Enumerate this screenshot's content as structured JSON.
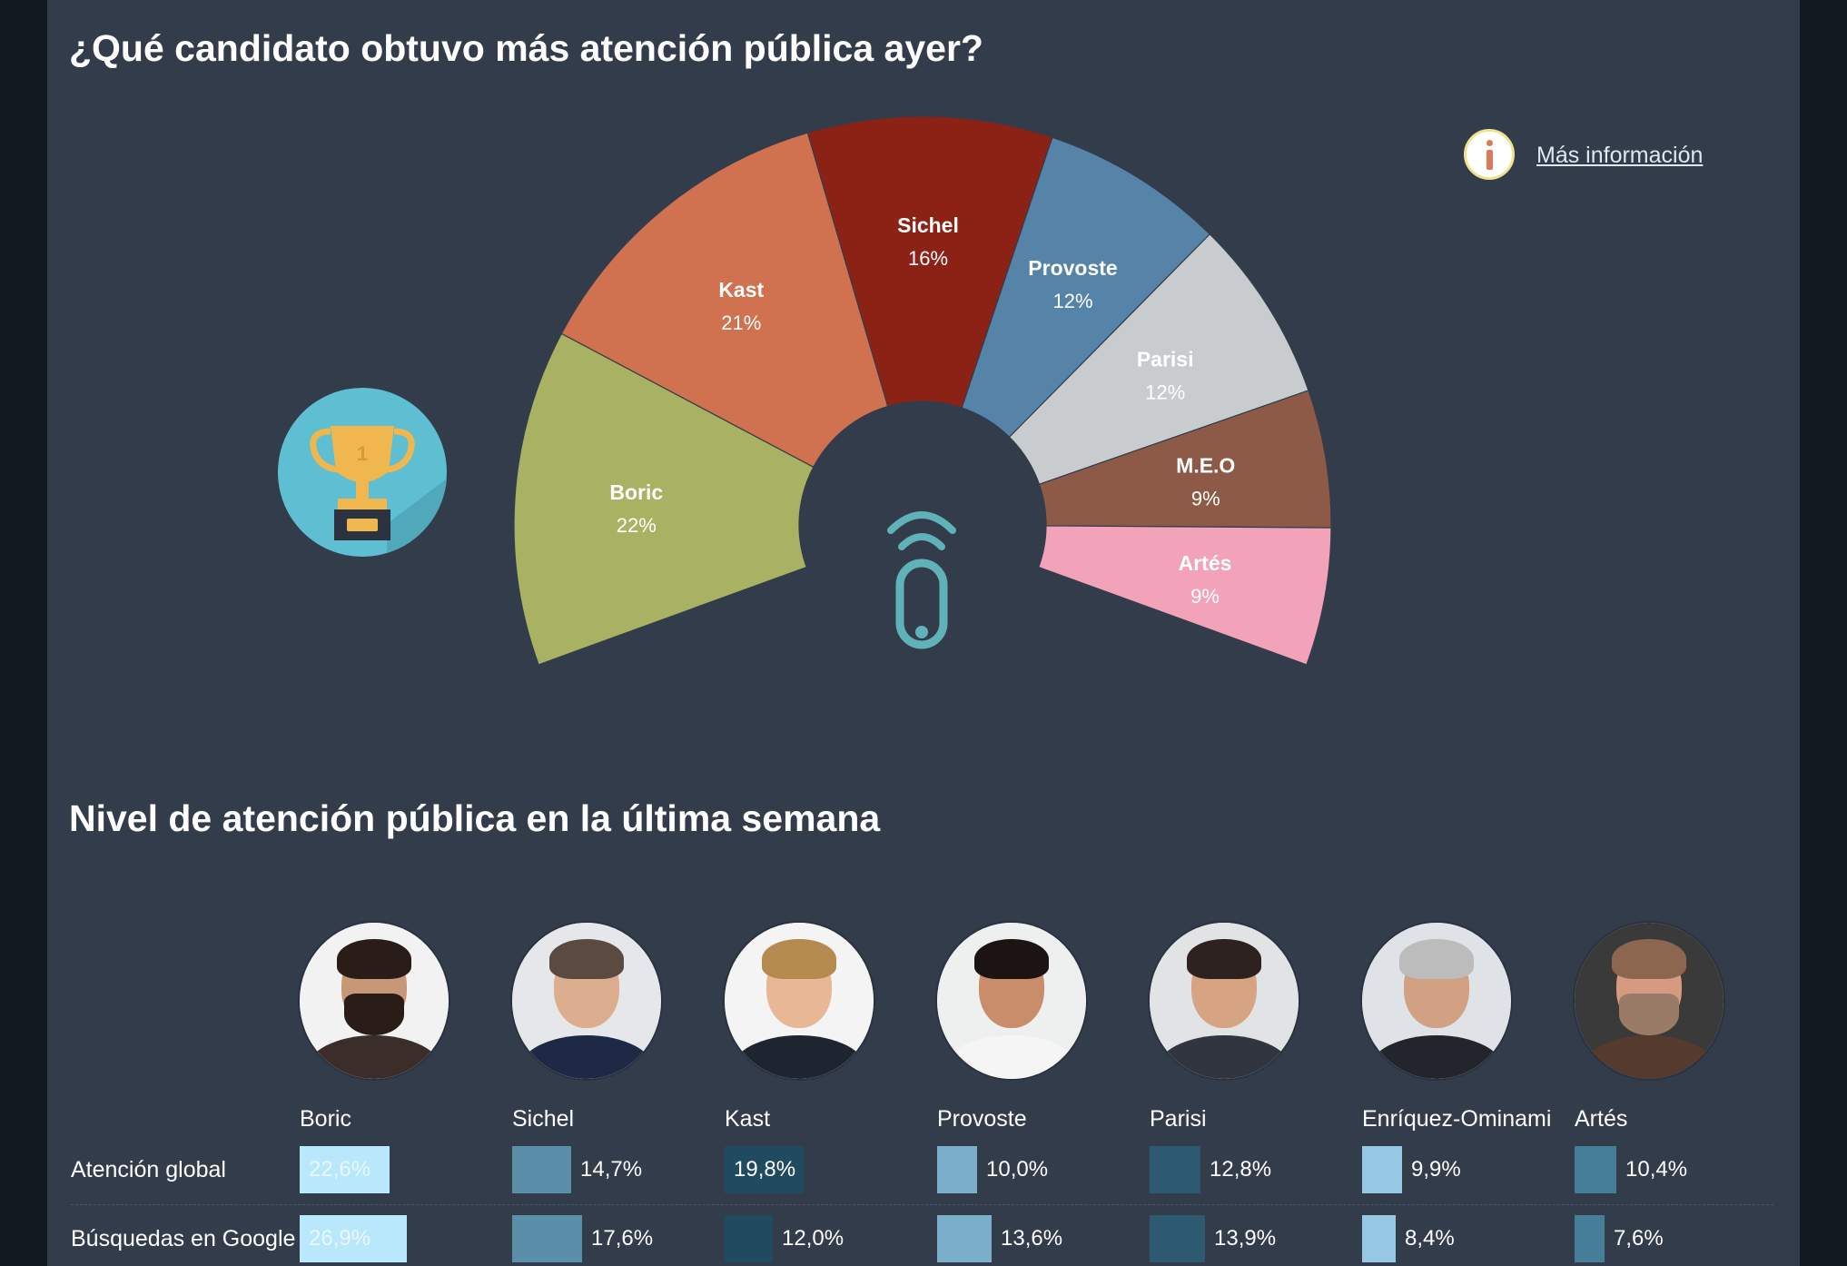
{
  "titles": {
    "main": "¿Qué candidato obtuvo más atención pública ayer?",
    "week": "Nivel de atención pública en la última semana"
  },
  "info": {
    "label": "Más información"
  },
  "icons": [
    "info-icon",
    "trophy-icon",
    "antenna-icon"
  ],
  "chart_data": [
    {
      "type": "pie",
      "variant": "half-donut",
      "title": "¿Qué candidato obtuvo más atención pública ayer?",
      "slices": [
        {
          "label": "Boric",
          "value": 22,
          "display": "22%",
          "color": "#a9b263"
        },
        {
          "label": "Kast",
          "value": 21,
          "display": "21%",
          "color": "#d07150"
        },
        {
          "label": "Sichel",
          "value": 16,
          "display": "16%",
          "color": "#8c2216"
        },
        {
          "label": "Provoste",
          "value": 12,
          "display": "12%",
          "color": "#5683a8"
        },
        {
          "label": "Parisi",
          "value": 12,
          "display": "12%",
          "color": "#c8cccf"
        },
        {
          "label": "M.E.O",
          "value": 9,
          "display": "9%",
          "color": "#8c5a47"
        },
        {
          "label": "Artés",
          "value": 9,
          "display": "9%",
          "color": "#f2a3ba"
        }
      ]
    },
    {
      "type": "table",
      "title": "Nivel de atención pública en la última semana",
      "columns": [
        "Boric",
        "Sichel",
        "Kast",
        "Provoste",
        "Parisi",
        "Enríquez-Ominami",
        "Artés"
      ],
      "rows": [
        {
          "label": "Atención global",
          "values": [
            22.6,
            14.7,
            19.8,
            10.0,
            12.8,
            9.9,
            10.4
          ],
          "display": [
            "22,6%",
            "14,7%",
            "19,8%",
            "10,0%",
            "12,8%",
            "9,9%",
            "10,4%"
          ]
        },
        {
          "label": "Búsquedas en Google",
          "values": [
            26.9,
            17.6,
            12.0,
            13.6,
            13.9,
            8.4,
            7.6
          ],
          "display": [
            "26,9%",
            "17,6%",
            "12,0%",
            "13,6%",
            "13,9%",
            "8,4%",
            "7,6%"
          ]
        }
      ],
      "colors": [
        "#b9e7fb",
        "#5b8ea8",
        "#1f4a60",
        "#7aaec9",
        "#2d5a70",
        "#96c8e3",
        "#467d98"
      ]
    }
  ]
}
